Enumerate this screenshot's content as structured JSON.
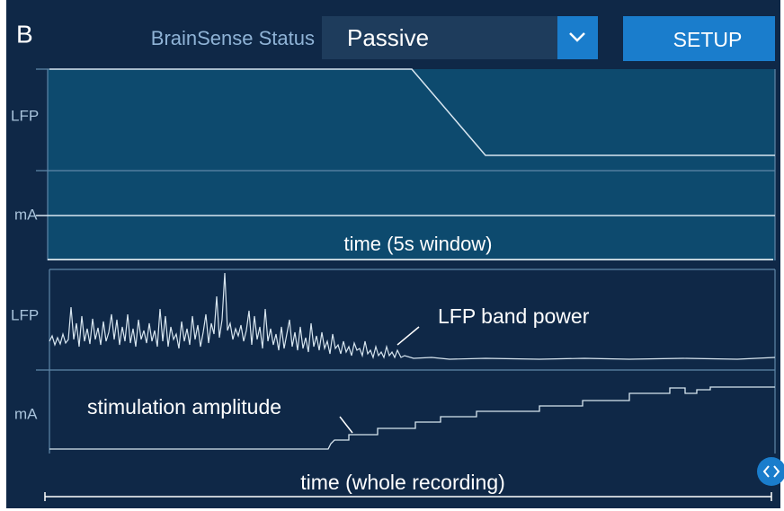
{
  "panel_label": "B",
  "header": {
    "status_label": "BrainSense Status",
    "status_value": "Passive",
    "setup_button": "SETUP"
  },
  "window_view": {
    "lfp_label": "LFP",
    "ma_label": "mA",
    "time_label": "time (5s window)"
  },
  "recording_view": {
    "lfp_label": "LFP",
    "ma_label": "mA",
    "lfp_annotation": "LFP band power",
    "stim_annotation": "stimulation amplitude",
    "time_label": "time (whole recording)"
  }
}
